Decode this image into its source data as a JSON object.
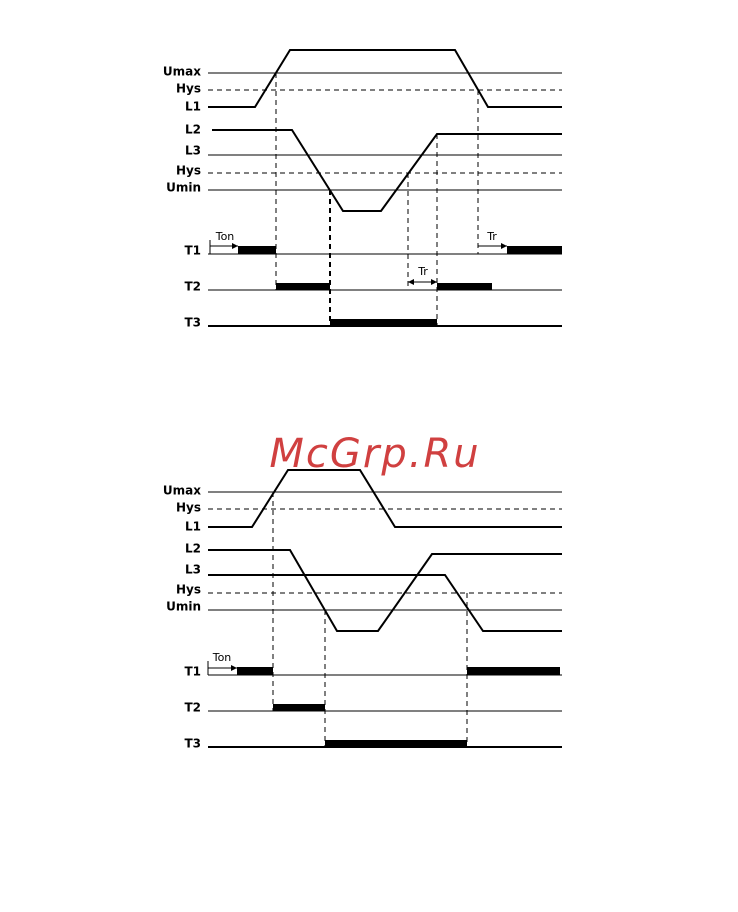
{
  "diagrams": [
    {
      "labels": [
        "Umax",
        "Hys",
        "L1",
        "L2",
        "L3",
        "Hys",
        "Umin",
        "T1",
        "T2",
        "T3"
      ],
      "annotations": [
        "Ton",
        "Tr",
        "Tr"
      ]
    },
    {
      "labels": [
        "Umax",
        "Hys",
        "L1",
        "L2",
        "L3",
        "Hys",
        "Umin",
        "T1",
        "T2",
        "T3"
      ],
      "annotations": [
        "Ton"
      ]
    }
  ],
  "watermark": "McGrp.Ru"
}
